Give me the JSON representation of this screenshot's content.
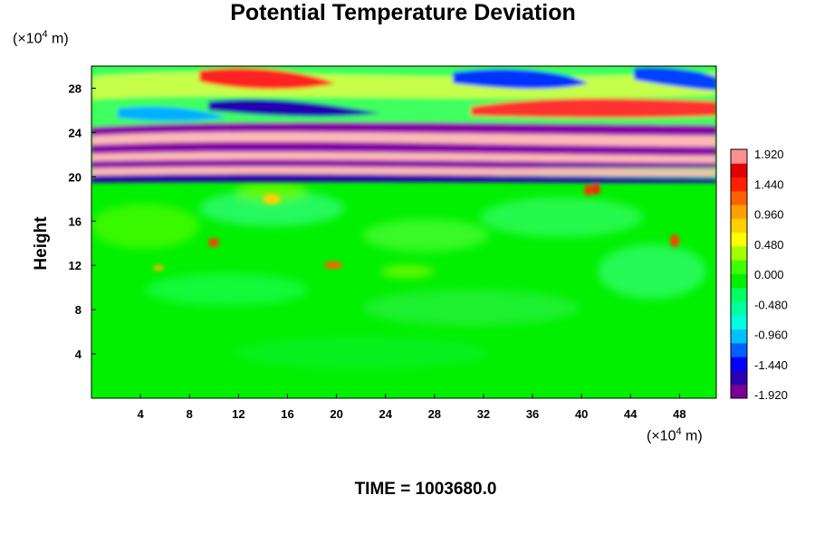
{
  "chart_data": {
    "type": "heatmap",
    "title": "Potential Temperature Deviation",
    "ylabel": "Height",
    "x_unit_prefix": "(×10",
    "x_unit_exp": "4",
    "x_unit_suffix": " m)",
    "y_unit_prefix": "(×10",
    "y_unit_exp": "4",
    "y_unit_suffix": " m)",
    "xlim": [
      0,
      51
    ],
    "ylim": [
      0,
      30
    ],
    "x_ticks": [
      4,
      8,
      12,
      16,
      20,
      24,
      28,
      32,
      36,
      40,
      44,
      48
    ],
    "y_ticks": [
      4,
      8,
      12,
      16,
      20,
      24,
      28
    ],
    "colorbar": {
      "min": -1.92,
      "max": 1.92,
      "labels": [
        "1.920",
        "1.440",
        "0.960",
        "0.480",
        "0.000",
        "-0.480",
        "-0.960",
        "-1.440",
        "-1.920"
      ],
      "colors": [
        "#7a0098",
        "#2b00b0",
        "#0000ff",
        "#0060ff",
        "#00c0ff",
        "#00ffe0",
        "#00ffa0",
        "#00ff60",
        "#00f000",
        "#40ff00",
        "#a0ff00",
        "#ffff00",
        "#ffd000",
        "#ffa000",
        "#ff6000",
        "#ff2000",
        "#e00000",
        "#ff9090"
      ]
    },
    "time_label": "TIME = 1003680.0",
    "background_value": 0.0
  },
  "colors": {
    "background": "#00f000",
    "pink": "#ffb8b8",
    "purple": "#8a00a8"
  }
}
